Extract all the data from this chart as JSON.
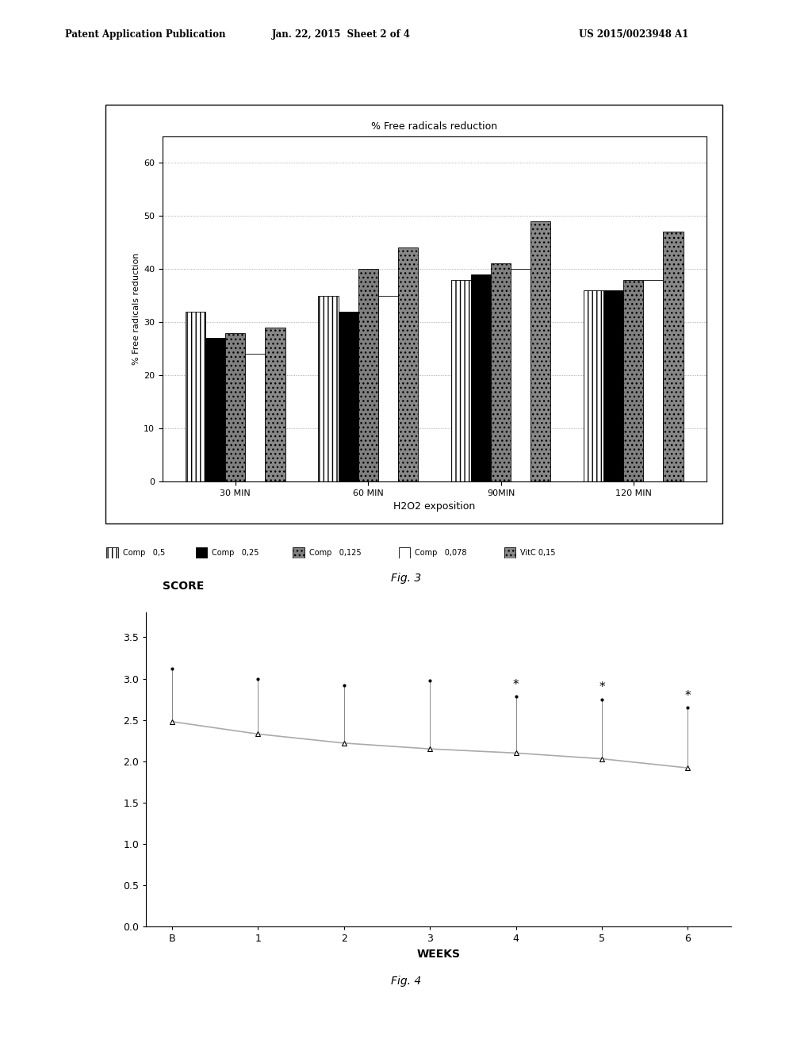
{
  "fig3": {
    "title": "% Free radicals reduction",
    "ylabel": "% Free radicals reduction",
    "xlabel": "H2O2 exposition",
    "xtick_labels": [
      "30 MIN",
      "60 MIN",
      "90MIN",
      "120 MIN"
    ],
    "yticks": [
      0,
      10,
      20,
      30,
      40,
      50,
      60
    ],
    "ylim": [
      0,
      65
    ],
    "bar_data": {
      "comp_0_5": [
        32,
        35,
        38,
        36
      ],
      "comp_0_25": [
        27,
        32,
        39,
        36
      ],
      "comp_0_125": [
        28,
        40,
        41,
        38
      ],
      "comp_0_078": [
        24,
        35,
        40,
        38
      ],
      "vilc_0_15": [
        29,
        44,
        49,
        47
      ]
    },
    "bar_width": 0.15,
    "bar_colors": [
      "white",
      "black",
      "gray",
      "white",
      "#888888"
    ],
    "bar_hatches": [
      "|||",
      "",
      "...",
      "",
      "..."
    ],
    "bar_edgecolors": [
      "black",
      "black",
      "black",
      "black",
      "black"
    ]
  },
  "fig4": {
    "title": "SCORE",
    "xlabel": "WEEKS",
    "xtick_labels": [
      "B",
      "1",
      "2",
      "3",
      "4",
      "5",
      "6"
    ],
    "x_values": [
      0,
      1,
      2,
      3,
      4,
      5,
      6
    ],
    "yticks": [
      0,
      0.5,
      1,
      1.5,
      2,
      2.5,
      3,
      3.5
    ],
    "ylim": [
      0,
      3.8
    ],
    "xlim": [
      -0.3,
      6.5
    ],
    "triangle_y": [
      2.48,
      2.33,
      2.22,
      2.15,
      2.1,
      2.03,
      1.92
    ],
    "error_top": [
      3.12,
      3.0,
      2.92,
      2.98,
      2.78,
      2.75,
      2.65
    ],
    "star_weeks": [
      4,
      5,
      6
    ],
    "trend_color": "#aaaaaa",
    "error_color": "#888888"
  },
  "background_color": "#ffffff",
  "header_left": "Patent Application Publication",
  "header_mid": "Jan. 22, 2015  Sheet 2 of 4",
  "header_right": "US 2015/0023948 A1",
  "fig3_label": "Fig. 3",
  "fig4_label": "Fig. 4",
  "legend_items": [
    {
      "color": "white",
      "hatch": "|||",
      "ec": "black",
      "label1": "Comp",
      "label2": "0,5"
    },
    {
      "color": "black",
      "hatch": "",
      "ec": "black",
      "label1": "Comp",
      "label2": "0,25"
    },
    {
      "color": "gray",
      "hatch": "...",
      "ec": "black",
      "label1": "Comp",
      "label2": "0,125"
    },
    {
      "color": "white",
      "hatch": "",
      "ec": "black",
      "label1": "Comp",
      "label2": "0,078"
    },
    {
      "color": "#888888",
      "hatch": "...",
      "ec": "black",
      "label1": "VitC",
      "label2": "0,15"
    }
  ]
}
